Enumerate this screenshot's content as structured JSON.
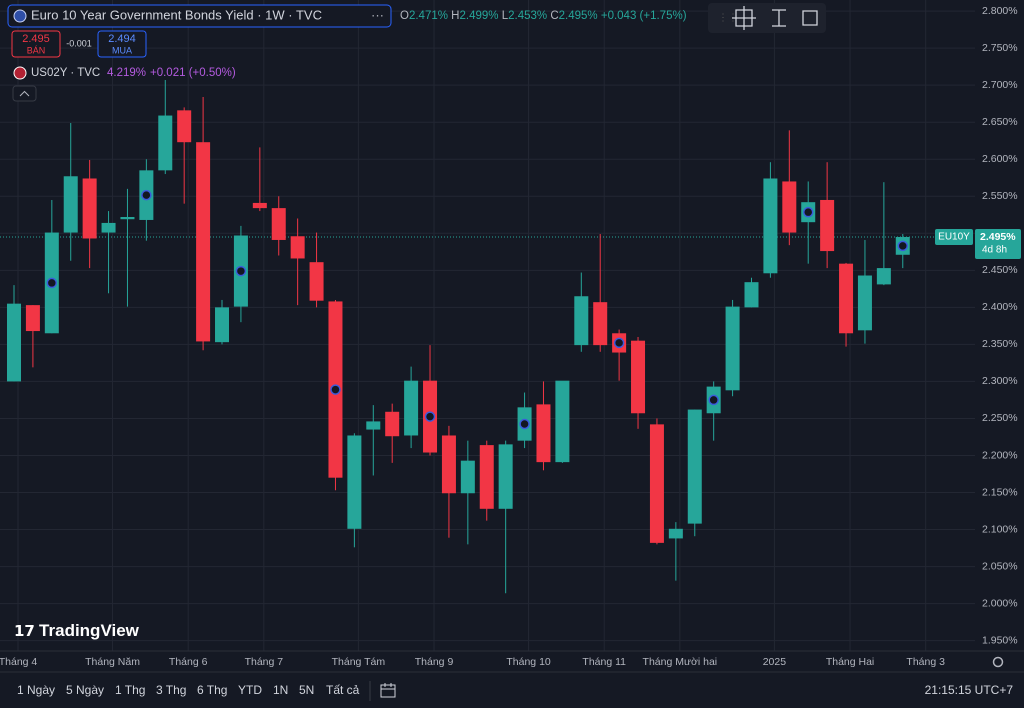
{
  "header": {
    "title": "Euro 10 Year Government Bonds Yield · 1W · TVC",
    "ohlc": [
      {
        "key": "O",
        "value": "2.471%"
      },
      {
        "key": "H",
        "value": "2.499%"
      },
      {
        "key": "L",
        "value": "2.453%"
      },
      {
        "key": "C",
        "value": "2.495%"
      }
    ],
    "change": "+0.043 (+1.75%)",
    "sell": {
      "price": "2.495",
      "label": "BÁN"
    },
    "spread": "-0.001",
    "buy": {
      "price": "2.494",
      "label": "MUA"
    },
    "compare": {
      "symbol": "US02Y · TVC",
      "value": "4.219%",
      "change": "+0.021 (+0.50%)"
    }
  },
  "chart_data": {
    "type": "candlestick",
    "open": [
      2.3,
      2.403,
      2.365,
      2.501,
      2.574,
      2.501,
      2.519,
      2.518,
      2.585,
      2.666,
      2.623,
      2.353,
      2.401,
      2.541,
      2.534,
      2.496,
      2.461,
      2.408,
      2.101,
      2.235,
      2.259,
      2.227,
      2.301,
      2.227,
      2.149,
      2.214,
      2.128,
      2.22,
      2.269,
      2.191,
      2.349,
      2.407,
      2.365,
      2.355,
      2.242,
      2.088,
      2.108,
      2.257,
      2.288,
      2.4,
      2.446,
      2.57,
      2.515,
      2.545,
      2.459,
      2.369,
      2.431,
      2.471
    ],
    "high": [
      2.43,
      2.403,
      2.545,
      2.649,
      2.599,
      2.53,
      2.56,
      2.6,
      2.707,
      2.67,
      2.684,
      2.41,
      2.51,
      2.616,
      2.55,
      2.52,
      2.501,
      2.41,
      2.23,
      2.268,
      2.27,
      2.32,
      2.349,
      2.24,
      2.22,
      2.22,
      2.22,
      2.285,
      2.3,
      2.3,
      2.447,
      2.499,
      2.37,
      2.36,
      2.25,
      2.11,
      2.262,
      2.3,
      2.41,
      2.44,
      2.596,
      2.639,
      2.57,
      2.596,
      2.46,
      2.491,
      2.569,
      2.499
    ],
    "low": [
      2.3,
      2.319,
      2.365,
      2.463,
      2.453,
      2.419,
      2.401,
      2.49,
      2.58,
      2.54,
      2.342,
      2.35,
      2.38,
      2.53,
      2.47,
      2.403,
      2.4,
      2.153,
      2.076,
      2.173,
      2.19,
      2.21,
      2.2,
      2.089,
      2.08,
      2.112,
      2.014,
      2.21,
      2.18,
      2.19,
      2.34,
      2.34,
      2.301,
      2.236,
      2.08,
      2.031,
      2.091,
      2.22,
      2.28,
      2.4,
      2.44,
      2.484,
      2.459,
      2.453,
      2.347,
      2.351,
      2.43,
      2.453
    ],
    "close": [
      2.405,
      2.368,
      2.501,
      2.577,
      2.493,
      2.514,
      2.522,
      2.585,
      2.659,
      2.623,
      2.354,
      2.4,
      2.497,
      2.534,
      2.491,
      2.466,
      2.409,
      2.17,
      2.227,
      2.246,
      2.226,
      2.301,
      2.204,
      2.149,
      2.193,
      2.128,
      2.215,
      2.265,
      2.191,
      2.301,
      2.415,
      2.349,
      2.339,
      2.257,
      2.082,
      2.101,
      2.262,
      2.293,
      2.401,
      2.434,
      2.574,
      2.501,
      2.542,
      2.476,
      2.365,
      2.443,
      2.453,
      2.495
    ],
    "up_color": "#26a69a",
    "down_color": "#f23645",
    "xticks": [
      {
        "value": 0,
        "label": "Tháng 4"
      },
      {
        "value": 5,
        "label": "Tháng Năm"
      },
      {
        "value": 9,
        "label": "Tháng 6"
      },
      {
        "value": 13,
        "label": "Tháng 7"
      },
      {
        "value": 18,
        "label": "Tháng Tám"
      },
      {
        "value": 22,
        "label": "Tháng 9"
      },
      {
        "value": 27,
        "label": "Tháng 10"
      },
      {
        "value": 31,
        "label": "Tháng 11"
      },
      {
        "value": 35,
        "label": "Tháng Mười hai"
      },
      {
        "value": 40,
        "label": "2025"
      },
      {
        "value": 44,
        "label": "Tháng Hai"
      },
      {
        "value": 48,
        "label": "Tháng 3"
      }
    ],
    "ylim": [
      1.936,
      2.815
    ],
    "yticks": [
      {
        "value": 1.95,
        "label": "1.950%"
      },
      {
        "value": 2.0,
        "label": "2.000%"
      },
      {
        "value": 2.05,
        "label": "2.050%"
      },
      {
        "value": 2.1,
        "label": "2.100%"
      },
      {
        "value": 2.15,
        "label": "2.150%"
      },
      {
        "value": 2.2,
        "label": "2.200%"
      },
      {
        "value": 2.25,
        "label": "2.250%"
      },
      {
        "value": 2.3,
        "label": "2.300%"
      },
      {
        "value": 2.35,
        "label": "2.350%"
      },
      {
        "value": 2.4,
        "label": "2.400%"
      },
      {
        "value": 2.45,
        "label": "2.450%"
      },
      {
        "value": 2.5,
        "label": "2.500%"
      },
      {
        "value": 2.55,
        "label": "2.550%"
      },
      {
        "value": 2.6,
        "label": "2.600%"
      },
      {
        "value": 2.65,
        "label": "2.650%"
      },
      {
        "value": 2.7,
        "label": "2.700%"
      },
      {
        "value": 2.75,
        "label": "2.750%"
      },
      {
        "value": 2.8,
        "label": "2.800%"
      }
    ],
    "grid": true,
    "last_price": {
      "symbol": "EU10Y",
      "value": 2.495,
      "label": "2.495%",
      "countdown": "4d 8h"
    }
  },
  "footer": {
    "ranges": [
      "1 Ngày",
      "5 Ngày",
      "1 Thg",
      "3 Thg",
      "6 Thg",
      "YTD",
      "1N",
      "5N",
      "Tất cả"
    ],
    "clock": "21:15:15 UTC+7"
  },
  "logo": "TradingView"
}
